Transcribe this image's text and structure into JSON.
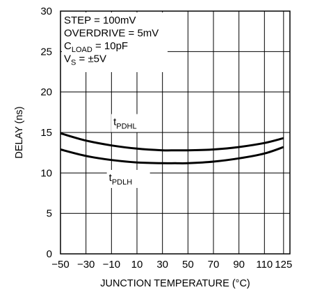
{
  "chart_data": {
    "type": "line",
    "xlabel": "JUNCTION TEMPERATURE (°C)",
    "ylabel": "DELAY (ns)",
    "xlim": [
      -50,
      130
    ],
    "ylim": [
      0,
      30
    ],
    "x_ticks": [
      -50,
      -30,
      -10,
      10,
      30,
      50,
      70,
      90,
      110,
      125
    ],
    "y_ticks": [
      0,
      5,
      10,
      15,
      20,
      25,
      30
    ],
    "grid": true,
    "conditions": [
      {
        "main": "STEP = 100mV",
        "sub": "",
        "tail": ""
      },
      {
        "main": "OVERDRIVE = 5mV",
        "sub": "",
        "tail": ""
      },
      {
        "main": "C",
        "sub": "LOAD",
        "tail": " = 10pF"
      },
      {
        "main": "V",
        "sub": "S",
        "tail": " = ±5V"
      }
    ],
    "series": [
      {
        "name_main": "t",
        "name_sub": "PDHL",
        "x": [
          -50,
          -30,
          -10,
          10,
          30,
          40,
          50,
          70,
          90,
          110,
          125
        ],
        "y": [
          14.9,
          14.0,
          13.4,
          13.0,
          12.8,
          12.8,
          12.8,
          12.9,
          13.2,
          13.7,
          14.3
        ]
      },
      {
        "name_main": "t",
        "name_sub": "PDLH",
        "x": [
          -50,
          -30,
          -10,
          10,
          30,
          40,
          50,
          70,
          90,
          110,
          125
        ],
        "y": [
          12.9,
          12.1,
          11.6,
          11.3,
          11.2,
          11.2,
          11.2,
          11.4,
          11.8,
          12.4,
          13.2
        ]
      }
    ]
  }
}
